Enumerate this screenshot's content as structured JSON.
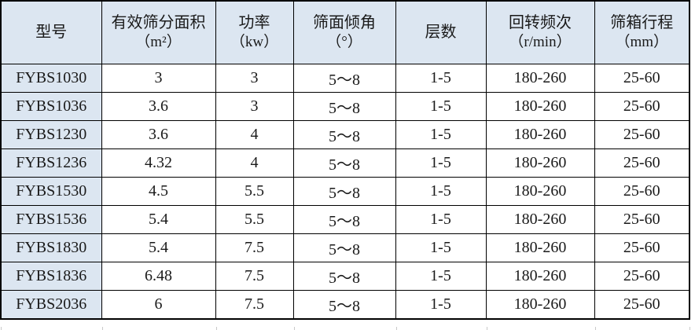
{
  "table": {
    "columns": [
      {
        "label": "型号",
        "unit": ""
      },
      {
        "label": "有效筛分面积",
        "unit": "（m²）"
      },
      {
        "label": "功率",
        "unit": "（kw）"
      },
      {
        "label": "筛面倾角",
        "unit": "（°）"
      },
      {
        "label": "层数",
        "unit": ""
      },
      {
        "label": "回转频次",
        "unit": "（r/min）"
      },
      {
        "label": "筛箱行程",
        "unit": "（mm）"
      }
    ],
    "rows": [
      [
        "FYBS1030",
        "3",
        "3",
        "5～8",
        "1-5",
        "180-260",
        "25-60"
      ],
      [
        "FYBS1036",
        "3.6",
        "3",
        "5～8",
        "1-5",
        "180-260",
        "25-60"
      ],
      [
        "FYBS1230",
        "3.6",
        "4",
        "5～8",
        "1-5",
        "180-260",
        "25-60"
      ],
      [
        "FYBS1236",
        "4.32",
        "4",
        "5～8",
        "1-5",
        "180-260",
        "25-60"
      ],
      [
        "FYBS1530",
        "4.5",
        "5.5",
        "5～8",
        "1-5",
        "180-260",
        "25-60"
      ],
      [
        "FYBS1536",
        "5.4",
        "5.5",
        "5～8",
        "1-5",
        "180-260",
        "25-60"
      ],
      [
        "FYBS1830",
        "5.4",
        "7.5",
        "5～8",
        "1-5",
        "180-260",
        "25-60"
      ],
      [
        "FYBS1836",
        "6.48",
        "7.5",
        "5～8",
        "1-5",
        "180-260",
        "25-60"
      ],
      [
        "FYBS2036",
        "6",
        "7.5",
        "5～8",
        "1-5",
        "180-260",
        "25-60"
      ]
    ]
  },
  "colors": {
    "header_bg": "#dce6f1",
    "model_column_bg": "#dce6f1",
    "grid_border": "#000000",
    "text": "#1a1a1a",
    "crop_stub_line": "#c9c9c9"
  }
}
